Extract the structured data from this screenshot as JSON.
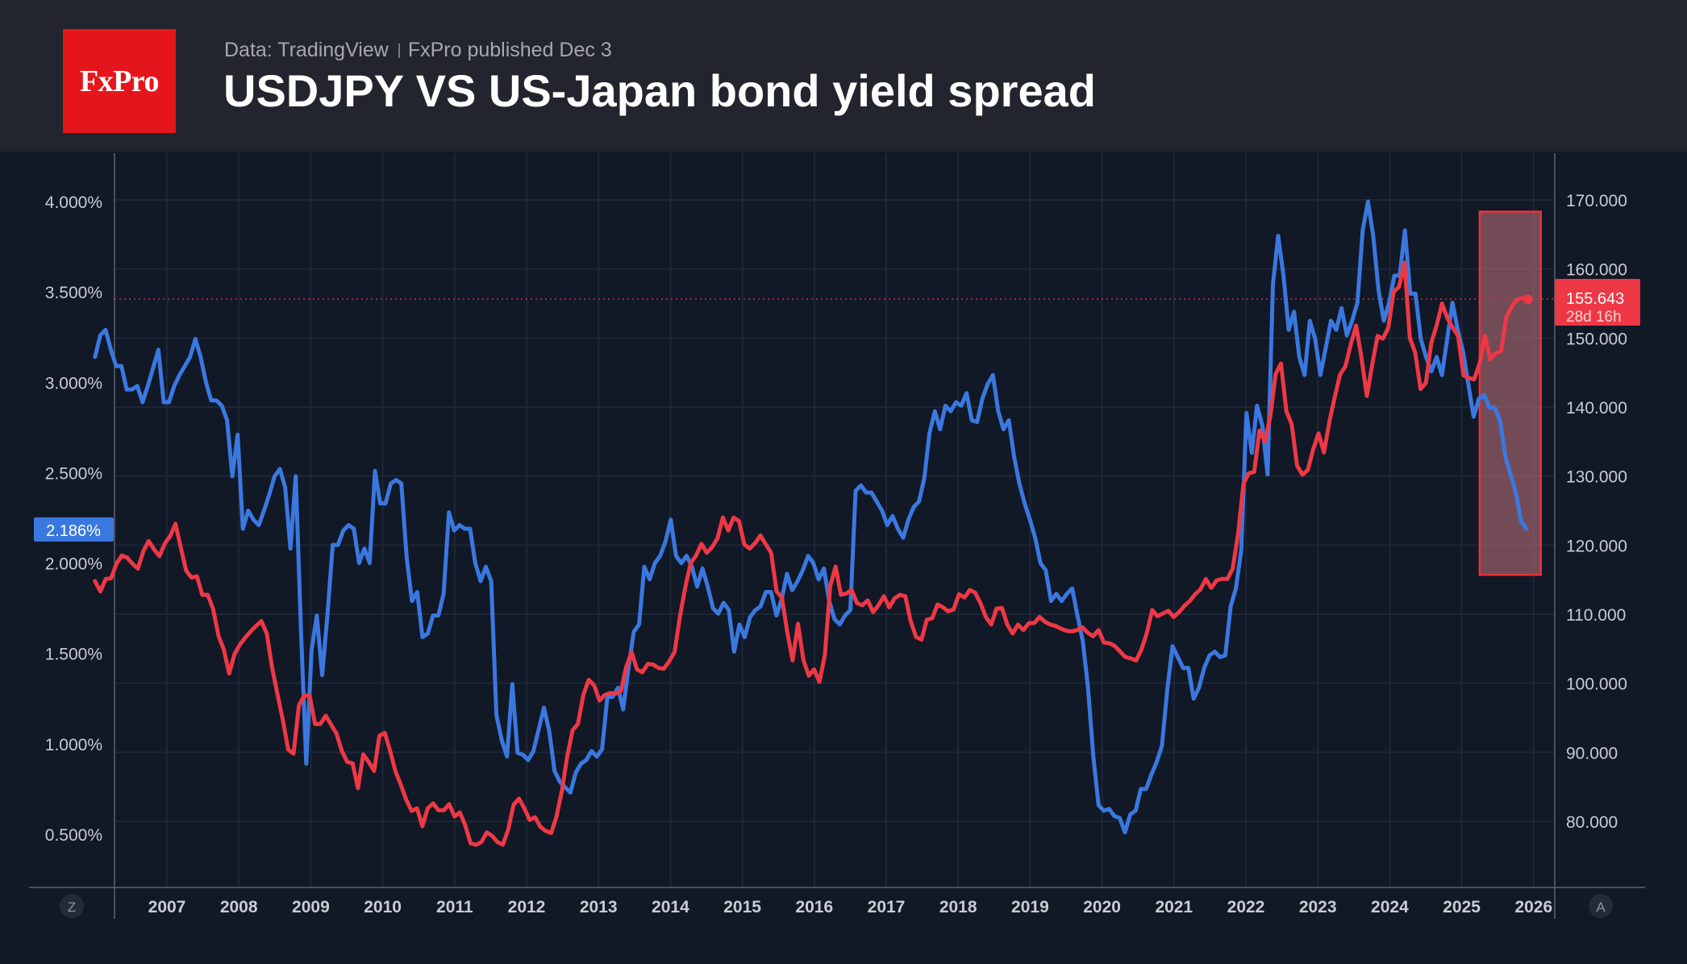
{
  "header": {
    "logo_text": "FxPro",
    "data_source": "Data: TradingView",
    "published": "FxPro published Dec 3",
    "title": "USDJPY VS US-Japan bond yield spread"
  },
  "colors": {
    "spread": "#3a78e0",
    "usdjpy": "#ee3845",
    "logo": "#e5161b",
    "highlight_fill": "#b06a74",
    "highlight_stroke": "#e8333e"
  },
  "corner_buttons": {
    "left": "Z",
    "right": "A"
  },
  "chart_data": {
    "type": "line",
    "title": "USDJPY VS US-Japan bond yield spread",
    "x_tick_labels": [
      "2007",
      "2008",
      "2009",
      "2010",
      "2011",
      "2012",
      "2013",
      "2014",
      "2015",
      "2016",
      "2017",
      "2018",
      "2019",
      "2020",
      "2021",
      "2022",
      "2023",
      "2024",
      "2025",
      "2026"
    ],
    "y_left": {
      "ylim": [
        0.22,
        4.28
      ],
      "ticks": [
        "0.500%",
        "1.000%",
        "1.500%",
        "2.000%",
        "2.500%",
        "3.000%",
        "3.500%",
        "4.000%"
      ],
      "tick_values": [
        0.5,
        1,
        1.5,
        2,
        2.5,
        3,
        3.5,
        4
      ],
      "current_label": "2.186%",
      "current_value": 2.186
    },
    "y_right": {
      "ylim": [
        74.5,
        172.5
      ],
      "ticks": [
        "80.000",
        "90.000",
        "100.000",
        "110.000",
        "120.000",
        "130.000",
        "140.000",
        "150.000",
        "160.000",
        "170.000"
      ],
      "tick_values": [
        80,
        90,
        100,
        110,
        120,
        130,
        140,
        150,
        160,
        170
      ],
      "current_label": "155.643",
      "current_value": 155.643,
      "countdown": "28d 16h"
    },
    "highlight": {
      "x": [
        2025.25,
        2026.1
      ],
      "y": [
        115.7,
        168.3
      ]
    },
    "grid": true,
    "series": [
      {
        "axis": "left",
        "color": "#3a78e0",
        "x_start": 2006.0,
        "x_end": 2025.9,
        "values": [
          3.14,
          3.26,
          3.29,
          3.18,
          3.09,
          3.09,
          2.96,
          2.96,
          2.98,
          2.89,
          2.98,
          3.08,
          3.18,
          2.89,
          2.89,
          2.98,
          3.04,
          3.09,
          3.14,
          3.24,
          3.14,
          3.0,
          2.9,
          2.9,
          2.87,
          2.79,
          2.48,
          2.71,
          2.19,
          2.29,
          2.24,
          2.21,
          2.29,
          2.38,
          2.48,
          2.52,
          2.42,
          2.08,
          2.48,
          1.62,
          0.89,
          1.52,
          1.71,
          1.38,
          1.71,
          2.1,
          2.1,
          2.18,
          2.21,
          2.19,
          2.0,
          2.08,
          2.0,
          2.51,
          2.33,
          2.33,
          2.44,
          2.46,
          2.44,
          2.03,
          1.79,
          1.84,
          1.59,
          1.61,
          1.71,
          1.71,
          1.83,
          2.28,
          2.18,
          2.21,
          2.19,
          2.19,
          2.0,
          1.9,
          1.98,
          1.9,
          1.16,
          1.02,
          0.93,
          1.33,
          0.95,
          0.94,
          0.91,
          0.96,
          1.08,
          1.2,
          1.07,
          0.85,
          0.79,
          0.76,
          0.73,
          0.84,
          0.89,
          0.91,
          0.96,
          0.93,
          0.97,
          1.26,
          1.26,
          1.31,
          1.19,
          1.42,
          1.62,
          1.66,
          1.98,
          1.91,
          2.0,
          2.04,
          2.12,
          2.24,
          2.04,
          2.0,
          2.04,
          1.98,
          1.87,
          1.97,
          1.87,
          1.75,
          1.72,
          1.78,
          1.74,
          1.51,
          1.66,
          1.59,
          1.7,
          1.74,
          1.76,
          1.84,
          1.84,
          1.71,
          1.8,
          1.94,
          1.85,
          1.9,
          1.96,
          2.04,
          2.0,
          1.91,
          1.97,
          1.79,
          1.69,
          1.66,
          1.71,
          1.74,
          2.4,
          2.43,
          2.39,
          2.39,
          2.34,
          2.29,
          2.21,
          2.26,
          2.19,
          2.14,
          2.24,
          2.31,
          2.34,
          2.47,
          2.72,
          2.84,
          2.74,
          2.87,
          2.84,
          2.89,
          2.87,
          2.94,
          2.79,
          2.78,
          2.91,
          2.99,
          3.04,
          2.84,
          2.74,
          2.79,
          2.59,
          2.44,
          2.33,
          2.24,
          2.14,
          2.0,
          1.96,
          1.79,
          1.83,
          1.79,
          1.83,
          1.86,
          1.71,
          1.57,
          1.31,
          0.93,
          0.66,
          0.63,
          0.64,
          0.6,
          0.59,
          0.51,
          0.61,
          0.63,
          0.75,
          0.75,
          0.83,
          0.9,
          0.99,
          1.3,
          1.54,
          1.48,
          1.42,
          1.42,
          1.25,
          1.31,
          1.42,
          1.49,
          1.51,
          1.48,
          1.49,
          1.76,
          1.86,
          2.07,
          2.83,
          2.61,
          2.87,
          2.76,
          2.49,
          3.54,
          3.81,
          3.59,
          3.29,
          3.39,
          3.14,
          3.04,
          3.34,
          3.24,
          3.04,
          3.19,
          3.34,
          3.29,
          3.41,
          3.26,
          3.34,
          3.44,
          3.84,
          4.0,
          3.81,
          3.51,
          3.34,
          3.44,
          3.59,
          3.59,
          3.84,
          3.49,
          3.49,
          3.24,
          3.14,
          3.06,
          3.14,
          3.04,
          3.24,
          3.44,
          3.29,
          3.17,
          2.99,
          2.81,
          2.91,
          2.93,
          2.86,
          2.86,
          2.79,
          2.59,
          2.49,
          2.39,
          2.23,
          2.19
        ]
      },
      {
        "axis": "right",
        "color": "#ee3845",
        "x_start": 2006.0,
        "x_end": 2025.92,
        "values": [
          114.8,
          113.3,
          115.1,
          115.2,
          117.3,
          118.5,
          118.2,
          117.3,
          116.6,
          119.1,
          120.6,
          119.4,
          118.4,
          120.2,
          121.3,
          123.1,
          119.6,
          116.3,
          115.3,
          115.5,
          112.8,
          112.8,
          110.8,
          106.9,
          104.9,
          101.4,
          104.2,
          105.6,
          106.6,
          107.5,
          108.3,
          109.0,
          107.2,
          102.3,
          98.4,
          94.7,
          90.4,
          89.8,
          96.8,
          98.2,
          98.2,
          94.1,
          94.1,
          95.3,
          94.0,
          92.7,
          90.2,
          88.6,
          88.4,
          84.8,
          89.7,
          88.6,
          87.3,
          92.4,
          92.8,
          90.2,
          87.2,
          85.3,
          83.1,
          81.5,
          81.9,
          79.3,
          81.9,
          82.6,
          81.6,
          81.6,
          82.5,
          80.7,
          81.3,
          79.4,
          76.8,
          76.6,
          77.0,
          78.4,
          77.9,
          77.0,
          76.6,
          78.8,
          82.4,
          83.3,
          81.9,
          80.2,
          80.6,
          79.2,
          78.6,
          78.3,
          80.7,
          84.4,
          89.4,
          93.2,
          94.1,
          98.3,
          100.5,
          99.7,
          97.5,
          98.3,
          98.6,
          98.5,
          98.9,
          102.4,
          104.5,
          102.0,
          101.6,
          102.8,
          102.7,
          102.2,
          102.1,
          103.2,
          104.5,
          109.7,
          113.9,
          117.4,
          118.5,
          120.2,
          118.9,
          119.7,
          121.0,
          124.0,
          122.1,
          124.0,
          123.5,
          120.1,
          119.5,
          120.3,
          121.4,
          120.1,
          118.9,
          113.3,
          112.4,
          107.4,
          103.3,
          108.6,
          103.4,
          101.1,
          102.0,
          100.2,
          104.1,
          114.1,
          116.9,
          112.8,
          113.0,
          113.5,
          111.6,
          111.3,
          112.0,
          110.3,
          111.3,
          112.6,
          111.0,
          112.3,
          112.8,
          112.6,
          109.0,
          106.7,
          106.3,
          109.2,
          109.4,
          111.4,
          111.0,
          110.4,
          110.7,
          112.9,
          112.4,
          113.5,
          113.1,
          111.6,
          109.6,
          108.5,
          110.8,
          110.9,
          108.5,
          107.2,
          108.5,
          107.7,
          108.7,
          108.7,
          109.6,
          108.9,
          108.5,
          108.3,
          107.9,
          107.6,
          107.5,
          107.7,
          108.1,
          107.3,
          106.8,
          107.7,
          105.9,
          105.8,
          105.4,
          104.6,
          103.8,
          103.6,
          103.3,
          104.9,
          107.3,
          110.6,
          109.7,
          110.1,
          110.5,
          109.6,
          110.3,
          111.2,
          111.9,
          112.9,
          113.6,
          115.1,
          113.8,
          114.9,
          115.1,
          115.1,
          116.6,
          121.6,
          128.9,
          130.4,
          130.6,
          136.6,
          135.0,
          138.6,
          144.8,
          146.3,
          139.4,
          137.5,
          131.5,
          130.2,
          130.9,
          133.9,
          136.2,
          133.4,
          137.8,
          141.4,
          144.7,
          145.9,
          149.1,
          151.8,
          147.1,
          141.6,
          146.2,
          150.3,
          149.9,
          151.5,
          156.7,
          157.4,
          160.9,
          150.0,
          147.9,
          142.6,
          143.5,
          149.3,
          151.8,
          155.0,
          152.9,
          151.5,
          150.3,
          144.6,
          144.2,
          144.0,
          146.3,
          150.3,
          146.9,
          147.8,
          148.1,
          153.0,
          154.6,
          155.6,
          155.8,
          155.6
        ]
      }
    ]
  }
}
